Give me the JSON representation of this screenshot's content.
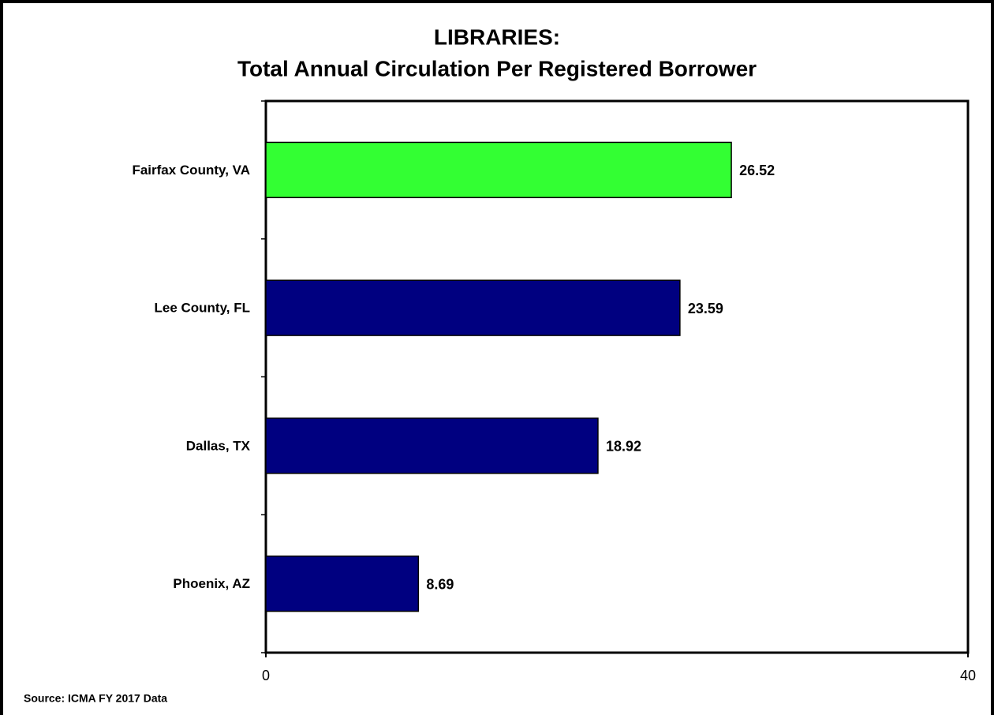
{
  "chart_data": {
    "type": "bar",
    "orientation": "horizontal",
    "title": "LIBRARIES:",
    "subtitle": "Total Annual Circulation Per Registered Borrower",
    "categories": [
      "Fairfax County, VA",
      "Lee County, FL",
      "Dallas, TX",
      "Phoenix, AZ"
    ],
    "values": [
      26.52,
      23.59,
      18.92,
      8.69
    ],
    "colors": [
      "#33ff33",
      "#000080",
      "#000080",
      "#000080"
    ],
    "xlim": [
      0,
      40
    ],
    "xticks": [
      0,
      40
    ],
    "source": "Source: ICMA FY 2017 Data"
  }
}
